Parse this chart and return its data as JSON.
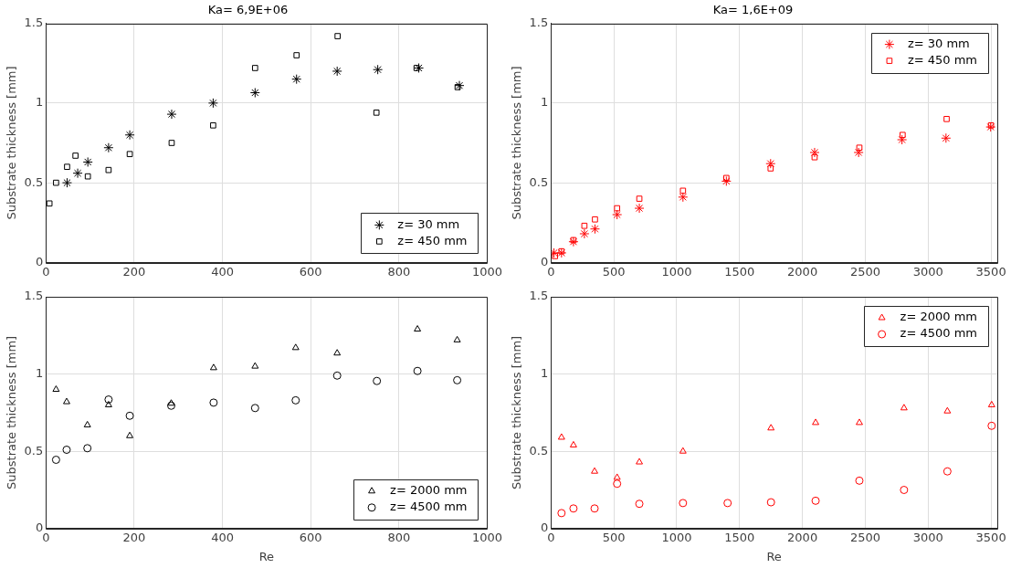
{
  "chart_data": [
    {
      "type": "scatter",
      "title": "Ka= 6,9E+06",
      "ylabel": "Substrate thickness [mm]",
      "xlim": [
        0,
        1000
      ],
      "xticks": [
        0,
        200,
        400,
        600,
        800,
        1000
      ],
      "ylim": [
        0,
        1.5
      ],
      "yticks": [
        0,
        0.5,
        1,
        1.5
      ],
      "grid": true,
      "legend": "bottom right",
      "series": [
        {
          "name": "z= 30 mm",
          "color": "#000000",
          "marker": "cross",
          "x": [
            48,
            72,
            95,
            142,
            190,
            285,
            379,
            474,
            568,
            660,
            752,
            845,
            937
          ],
          "values": [
            0.5,
            0.56,
            0.63,
            0.72,
            0.8,
            0.93,
            1.0,
            1.065,
            1.15,
            1.2,
            1.21,
            1.22,
            1.11
          ]
        },
        {
          "name": "z= 450 mm",
          "color": "#000000",
          "marker": "square",
          "x": [
            8,
            23,
            48,
            67,
            95,
            142,
            190,
            285,
            379,
            474,
            568,
            661,
            749,
            840,
            933
          ],
          "values": [
            0.37,
            0.5,
            0.6,
            0.67,
            0.54,
            0.58,
            0.68,
            0.75,
            0.86,
            1.22,
            1.3,
            1.42,
            0.94,
            1.22,
            1.1
          ]
        }
      ]
    },
    {
      "type": "scatter",
      "title": "Ka= 1,6E+09",
      "ylabel": "Substrate thickness [mm]",
      "xlim": [
        0,
        3550
      ],
      "xticks": [
        0,
        500,
        1000,
        1500,
        2000,
        2500,
        3000,
        3500
      ],
      "ylim": [
        0,
        1.5
      ],
      "yticks": [
        0,
        0.5,
        1,
        1.5
      ],
      "grid": true,
      "legend": "top right",
      "series": [
        {
          "name": "z= 30 mm",
          "color": "#ff0000",
          "marker": "cross",
          "x": [
            24,
            84,
            179,
            266,
            350,
            526,
            703,
            1050,
            1395,
            1747,
            2097,
            2447,
            2792,
            3142,
            3497
          ],
          "values": [
            0.06,
            0.06,
            0.13,
            0.18,
            0.21,
            0.3,
            0.34,
            0.41,
            0.51,
            0.62,
            0.69,
            0.69,
            0.77,
            0.78,
            0.85
          ]
        },
        {
          "name": "z= 450 mm",
          "color": "#ff0000",
          "marker": "square",
          "x": [
            32,
            84,
            179,
            266,
            350,
            526,
            703,
            1050,
            1395,
            1747,
            2097,
            2453,
            2797,
            3147,
            3500
          ],
          "values": [
            0.04,
            0.07,
            0.14,
            0.23,
            0.27,
            0.34,
            0.4,
            0.45,
            0.53,
            0.59,
            0.66,
            0.72,
            0.8,
            0.9,
            0.86
          ]
        }
      ]
    },
    {
      "type": "scatter",
      "xlabel": "Re",
      "ylabel": "Substrate thickness [mm]",
      "xlim": [
        0,
        1000
      ],
      "xticks": [
        0,
        200,
        400,
        600,
        800,
        1000
      ],
      "ylim": [
        0,
        1.5
      ],
      "yticks": [
        0,
        0.5,
        1,
        1.5
      ],
      "grid": true,
      "legend": "bottom right",
      "series": [
        {
          "name": "z= 2000 mm",
          "color": "#000000",
          "marker": "triangle",
          "x": [
            23,
            47,
            94,
            142,
            190,
            284,
            380,
            474,
            566,
            660,
            842,
            932
          ],
          "values": [
            0.9,
            0.82,
            0.67,
            0.8,
            0.6,
            0.81,
            1.04,
            1.05,
            1.17,
            1.135,
            1.29,
            1.22
          ]
        },
        {
          "name": "z= 4500 mm",
          "color": "#000000",
          "marker": "circle",
          "x": [
            23,
            47,
            94,
            142,
            190,
            284,
            380,
            474,
            566,
            660,
            750,
            842,
            932
          ],
          "values": [
            0.445,
            0.51,
            0.52,
            0.835,
            0.73,
            0.795,
            0.815,
            0.78,
            0.83,
            0.99,
            0.955,
            1.02,
            0.96
          ]
        }
      ]
    },
    {
      "type": "scatter",
      "xlabel": "Re",
      "ylabel": "Substrate thickness [mm]",
      "xlim": [
        0,
        3550
      ],
      "xticks": [
        0,
        500,
        1000,
        1500,
        2000,
        2500,
        3000,
        3500
      ],
      "ylim": [
        0,
        1.5
      ],
      "yticks": [
        0,
        0.5,
        1,
        1.5
      ],
      "grid": true,
      "legend": "top right",
      "series": [
        {
          "name": "z= 2000 mm",
          "color": "#ff0000",
          "marker": "triangle",
          "x": [
            84,
            179,
            347,
            526,
            703,
            1050,
            1750,
            2105,
            2453,
            2808,
            3153,
            3505
          ],
          "values": [
            0.59,
            0.54,
            0.37,
            0.33,
            0.43,
            0.5,
            0.65,
            0.685,
            0.685,
            0.78,
            0.76,
            0.8
          ]
        },
        {
          "name": "z= 4500 mm",
          "color": "#ff0000",
          "marker": "circle",
          "x": [
            84,
            179,
            347,
            526,
            703,
            1050,
            1405,
            1750,
            2105,
            2453,
            2808,
            3153,
            3505
          ],
          "values": [
            0.1,
            0.13,
            0.13,
            0.29,
            0.16,
            0.165,
            0.165,
            0.17,
            0.18,
            0.31,
            0.25,
            0.37,
            0.665
          ]
        }
      ]
    }
  ]
}
